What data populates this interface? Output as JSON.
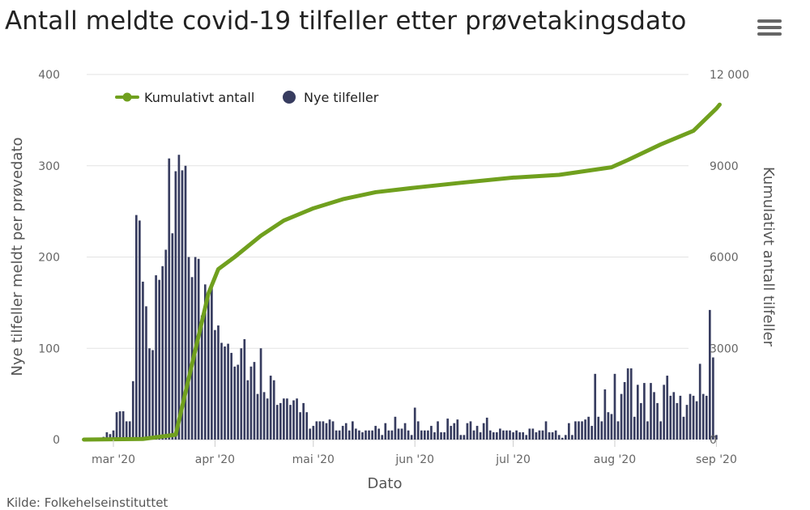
{
  "page": {
    "title": "Antall meldte covid-19 tilfeller etter prøvetakingsdato",
    "source": "Kilde: Folkehelseinstituttet",
    "menu_icon": "hamburger-menu-icon"
  },
  "chart_data": {
    "type": "bar",
    "title": "Antall meldte covid-19 tilfeller etter prøvetakingsdato",
    "xlabel": "Dato",
    "ylabel": "Nye tilfeller meldt per prøvedato",
    "y2label": "Kumulativt antall tilfeller",
    "ylim": [
      0,
      400
    ],
    "y2lim": [
      0,
      12000
    ],
    "yticks": [
      "0",
      "100",
      "200",
      "300",
      "400"
    ],
    "y2ticks": [
      "0",
      "3000",
      "6000",
      "9000",
      "12 000"
    ],
    "x_start": "2020-02-21",
    "xticks": [
      {
        "date": "2020-03-01",
        "label": "mar '20"
      },
      {
        "date": "2020-04-01",
        "label": "apr '20"
      },
      {
        "date": "2020-05-01",
        "label": "mai '20"
      },
      {
        "date": "2020-06-01",
        "label": "jun '20"
      },
      {
        "date": "2020-07-01",
        "label": "jul '20"
      },
      {
        "date": "2020-08-01",
        "label": "aug '20"
      },
      {
        "date": "2020-09-01",
        "label": "sep '20"
      }
    ],
    "grid": true,
    "legend_position": "top-left",
    "series": [
      {
        "name": "Nye tilfeller",
        "type": "bar",
        "axis": "left",
        "color": "#373c5f",
        "values": [
          1,
          0,
          1,
          0,
          0,
          0,
          3,
          8,
          6,
          10,
          30,
          31,
          31,
          20,
          20,
          64,
          246,
          240,
          173,
          146,
          100,
          98,
          180,
          175,
          190,
          208,
          308,
          226,
          294,
          312,
          295,
          300,
          200,
          178,
          200,
          198,
          136,
          170,
          160,
          168,
          120,
          125,
          106,
          102,
          105,
          95,
          80,
          82,
          100,
          110,
          65,
          80,
          85,
          50,
          100,
          52,
          45,
          70,
          65,
          38,
          40,
          45,
          45,
          38,
          43,
          45,
          30,
          40,
          30,
          12,
          15,
          20,
          20,
          20,
          18,
          22,
          20,
          10,
          10,
          15,
          18,
          10,
          20,
          12,
          10,
          8,
          10,
          10,
          10,
          15,
          12,
          5,
          18,
          10,
          10,
          25,
          12,
          12,
          18,
          10,
          5,
          35,
          20,
          10,
          10,
          10,
          15,
          8,
          20,
          8,
          8,
          23,
          15,
          18,
          22,
          5,
          5,
          18,
          20,
          10,
          15,
          8,
          18,
          24,
          10,
          8,
          8,
          12,
          10,
          10,
          10,
          8,
          10,
          8,
          8,
          5,
          12,
          12,
          8,
          10,
          10,
          20,
          8,
          8,
          10,
          5,
          2,
          5,
          18,
          5,
          20,
          20,
          20,
          22,
          25,
          15,
          72,
          25,
          20,
          55,
          30,
          28,
          72,
          20,
          50,
          63,
          78,
          78,
          25,
          60,
          40,
          62,
          20,
          62,
          52,
          40,
          20,
          60,
          70,
          48,
          52,
          40,
          48,
          25,
          38,
          50,
          48,
          42,
          83,
          50,
          48,
          142,
          90,
          5
        ],
        "note": "Tilfeller etter prøvetakingsdato"
      },
      {
        "name": "Kumulativt antall",
        "type": "line",
        "axis": "right",
        "color": "#70a01e",
        "points": [
          [
            "2020-02-21",
            1
          ],
          [
            "2020-03-10",
            20
          ],
          [
            "2020-03-20",
            160
          ],
          [
            "2020-03-30",
            4800
          ],
          [
            "2020-04-02",
            5600
          ],
          [
            "2020-04-07",
            6000
          ],
          [
            "2020-04-15",
            6700
          ],
          [
            "2020-04-22",
            7200
          ],
          [
            "2020-05-01",
            7600
          ],
          [
            "2020-05-10",
            7900
          ],
          [
            "2020-05-20",
            8130
          ],
          [
            "2020-06-01",
            8280
          ],
          [
            "2020-06-15",
            8440
          ],
          [
            "2020-07-01",
            8610
          ],
          [
            "2020-07-15",
            8700
          ],
          [
            "2020-07-31",
            8950
          ],
          [
            "2020-08-05",
            9190
          ],
          [
            "2020-08-15",
            9700
          ],
          [
            "2020-08-25",
            10150
          ],
          [
            "2020-09-01",
            10880
          ],
          [
            "2020-09-02",
            11010
          ]
        ]
      }
    ]
  }
}
